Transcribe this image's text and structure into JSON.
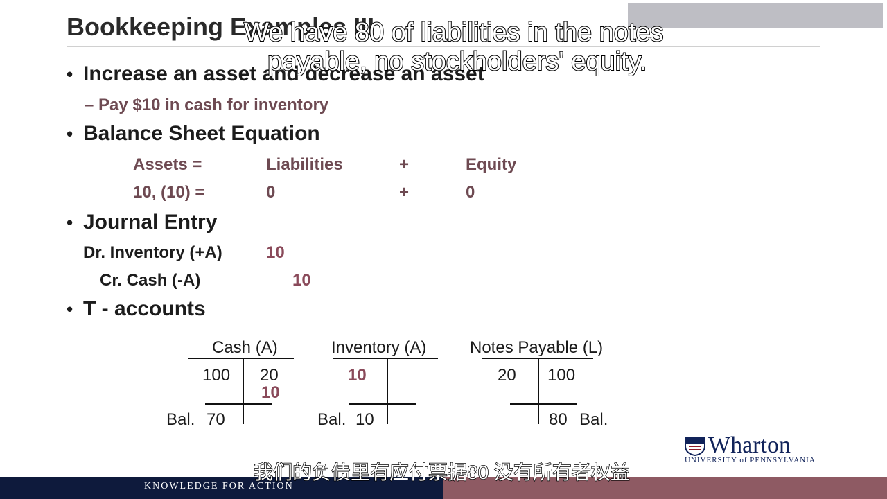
{
  "slide": {
    "title": "Bookkeeping Examples III",
    "bullets": {
      "b1": "Increase an asset and decrease an asset",
      "b1_sub": "– Pay $10 in cash for inventory",
      "b2": "Balance Sheet Equation",
      "b3": "Journal Entry",
      "b4": "T - accounts",
      "bullet_char": "•"
    },
    "equation": {
      "header": [
        "Assets =",
        "Liabilities",
        "+",
        "Equity"
      ],
      "row": [
        "10, (10) =",
        "0",
        "+",
        "0"
      ]
    },
    "journal": {
      "debit_label": "Dr. Inventory (+A)",
      "debit_value": "10",
      "credit_label": "Cr. Cash (-A)",
      "credit_value": "10"
    },
    "t_accounts": [
      {
        "title": "Cash (A)",
        "left": [
          "100"
        ],
        "right": [
          "20",
          "10"
        ],
        "bal_label": "Bal.",
        "bal_value": "70"
      },
      {
        "title": "Inventory (A)",
        "left": [
          "10"
        ],
        "right": [],
        "bal_label": "Bal.",
        "bal_value": "10"
      },
      {
        "title": "Notes Payable (L)",
        "left": [
          "20"
        ],
        "right": [
          "100"
        ],
        "bal_label": "Bal.",
        "bal_value": "80"
      }
    ]
  },
  "subtitles": {
    "english_line1": "We have 80 of liabilities in the notes",
    "english_line2": "payable, no stockholders' equity.",
    "chinese": "我们的负债里有应付票据80 没有所有者权益"
  },
  "footer": {
    "tagline": "KNOWLEDGE FOR ACTION",
    "logo_name": "Wharton",
    "logo_univ": "UNIVERSITY of PENNSYLVANIA"
  },
  "colors": {
    "accent": "#8a4a5a",
    "navy": "#0e1a3c",
    "footer_maroon": "#8e5a63"
  }
}
